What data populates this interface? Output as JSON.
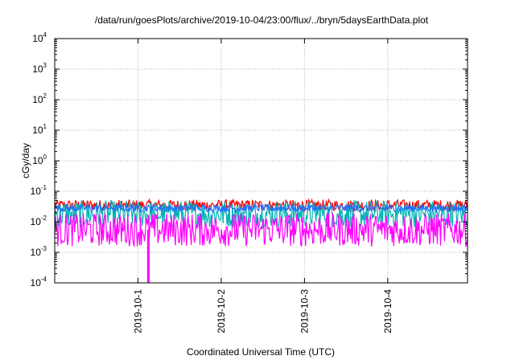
{
  "chart_data": {
    "type": "line",
    "title": "/data/run/goesPlots/archive/2019-10-04/23:00/flux/../bryn/5daysEarthData.plot",
    "xlabel": "Coordinated Universal Time (UTC)",
    "ylabel": "cGy/day",
    "y_scale": "log",
    "ylim": [
      0.0001,
      10000
    ],
    "y_ticks": [
      {
        "value": 0.0001,
        "mantissa": "10",
        "exp": "-4"
      },
      {
        "value": 0.001,
        "mantissa": "10",
        "exp": "-3"
      },
      {
        "value": 0.01,
        "mantissa": "10",
        "exp": "-2"
      },
      {
        "value": 0.1,
        "mantissa": "10",
        "exp": "-1"
      },
      {
        "value": 1,
        "mantissa": "10",
        "exp": "0"
      },
      {
        "value": 10,
        "mantissa": "10",
        "exp": "1"
      },
      {
        "value": 100,
        "mantissa": "10",
        "exp": "2"
      },
      {
        "value": 1000,
        "mantissa": "10",
        "exp": "3"
      },
      {
        "value": 10000,
        "mantissa": "10",
        "exp": "4"
      }
    ],
    "xlim": [
      "2019-09-30T00:00",
      "2019-10-04T23:00"
    ],
    "x_ticks": [
      "2019-10-1",
      "2019-10-2",
      "2019-10-3",
      "2019-10-4"
    ],
    "x_tick_dates": [
      "2019-10-01T00:00",
      "2019-10-02T00:00",
      "2019-10-03T00:00",
      "2019-10-04T00:00"
    ],
    "grid": true,
    "legend": "none",
    "series": [
      {
        "color": "#ff0000",
        "base": 0.035,
        "spread": 0.18
      },
      {
        "color": "#00b3b3",
        "base": 0.018,
        "spread": 0.45
      },
      {
        "color": "#1e6fff",
        "base": 0.028,
        "spread": 0.12
      },
      {
        "color": "#ff00ff",
        "base": 0.0055,
        "spread": 0.55
      }
    ],
    "events": [
      {
        "series_color": "#ff00ff",
        "date": "2019-10-01T03:00",
        "value": 0.0001
      }
    ]
  }
}
